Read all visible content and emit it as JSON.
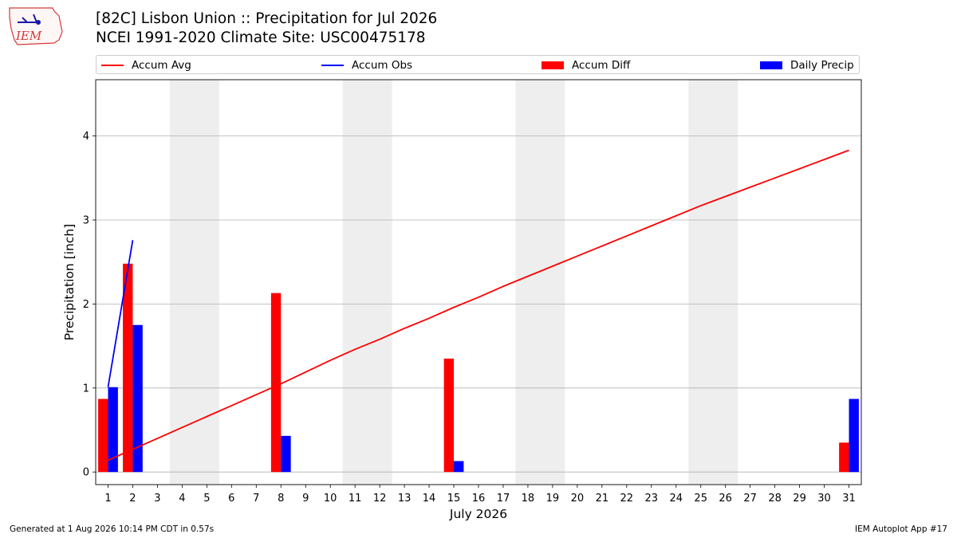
{
  "logo": {
    "text": "IEM"
  },
  "header": {
    "title_line1": "[82C] Lisbon Union :: Precipitation for Jul 2026",
    "title_line2": "NCEI 1991-2020 Climate Site: USC00475178"
  },
  "legend": {
    "items": [
      {
        "label": "Accum Avg",
        "kind": "line",
        "color": "#ff0000"
      },
      {
        "label": "Accum Obs",
        "kind": "line",
        "color": "#0000ff"
      },
      {
        "label": "Accum Diff",
        "kind": "patch",
        "color": "#ff0000"
      },
      {
        "label": "Daily Precip",
        "kind": "patch",
        "color": "#0000ff"
      }
    ]
  },
  "chart_data": {
    "type": "bar",
    "xlabel": "July 2026",
    "ylabel": "Precipitation [inch]",
    "xlim": [
      0.5,
      31.5
    ],
    "ylim": [
      -0.15,
      4.67
    ],
    "x_ticks": [
      1,
      2,
      3,
      4,
      5,
      6,
      7,
      8,
      9,
      10,
      11,
      12,
      13,
      14,
      15,
      16,
      17,
      18,
      19,
      20,
      21,
      22,
      23,
      24,
      25,
      26,
      27,
      28,
      29,
      30,
      31
    ],
    "y_ticks": [
      0,
      1,
      2,
      3,
      4
    ],
    "grid": "horizontal",
    "weekend_bands": [
      [
        3.5,
        5.5
      ],
      [
        10.5,
        12.5
      ],
      [
        17.5,
        19.5
      ],
      [
        24.5,
        26.5
      ]
    ],
    "weekend_color": "#eeeeee",
    "series": [
      {
        "name": "Accum Avg",
        "kind": "line",
        "color": "#ff0000",
        "x": [
          1,
          2,
          3,
          4,
          5,
          6,
          7,
          8,
          9,
          10,
          11,
          12,
          13,
          14,
          15,
          16,
          17,
          18,
          19,
          20,
          21,
          22,
          23,
          24,
          25,
          26,
          27,
          28,
          29,
          30,
          31
        ],
        "values": [
          0.14,
          0.27,
          0.4,
          0.53,
          0.66,
          0.79,
          0.92,
          1.05,
          1.19,
          1.33,
          1.46,
          1.58,
          1.71,
          1.83,
          1.96,
          2.08,
          2.21,
          2.33,
          2.45,
          2.57,
          2.69,
          2.81,
          2.93,
          3.05,
          3.17,
          3.28,
          3.39,
          3.5,
          3.61,
          3.72,
          3.83
        ]
      },
      {
        "name": "Accum Obs",
        "kind": "line",
        "color": "#0000ff",
        "x": [
          1,
          2
        ],
        "values": [
          1.01,
          2.76
        ]
      },
      {
        "name": "Accum Diff",
        "kind": "bar",
        "color": "#ff0000",
        "offset": "left",
        "x": [
          1,
          2,
          8,
          15,
          31
        ],
        "values": [
          0.87,
          2.48,
          2.13,
          1.35,
          0.35
        ]
      },
      {
        "name": "Daily Precip",
        "kind": "bar",
        "color": "#0000ff",
        "offset": "right",
        "x": [
          1,
          2,
          8,
          15,
          31
        ],
        "values": [
          1.01,
          1.75,
          0.43,
          0.13,
          0.87
        ]
      }
    ]
  },
  "footer": {
    "left": "Generated at 1 Aug 2026 10:14 PM CDT in 0.57s",
    "right": "IEM Autoplot App #17"
  }
}
